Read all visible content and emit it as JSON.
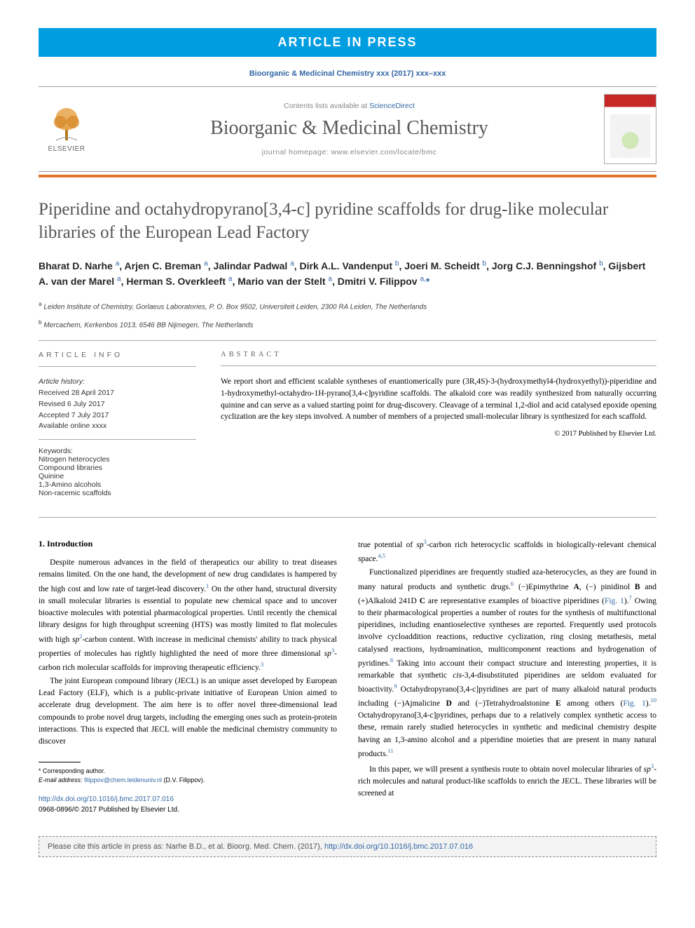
{
  "banner": "ARTICLE IN PRESS",
  "citation_top": "Bioorganic & Medicinal Chemistry xxx (2017) xxx–xxx",
  "header": {
    "publisher_name": "ELSEVIER",
    "contents_prefix": "Contents lists available at ",
    "contents_link": "ScienceDirect",
    "journal_name": "Bioorganic & Medicinal Chemistry",
    "homepage_prefix": "journal homepage: ",
    "homepage_url": "www.elsevier.com/locate/bmc"
  },
  "title": "Piperidine and octahydropyrano[3,4-c] pyridine scaffolds for drug-like molecular libraries of the European Lead Factory",
  "authors_html": "Bharat D. Narhe <sup>a</sup>, Arjen C. Breman <sup>a</sup>, Jalindar Padwal <sup>a</sup>, Dirk A.L. Vandenput <sup>b</sup>, Joeri M. Scheidt <sup>b</sup>, Jorg C.J. Benningshof <sup>b</sup>, Gijsbert A. van der Marel <sup>a</sup>, Herman S. Overkleeft <sup>a</sup>, Mario van der Stelt <sup>a</sup>, Dmitri V. Filippov <sup>a,</sup><span class='star'>*</span>",
  "affiliations": [
    {
      "marker": "a",
      "text": "Leiden Institute of Chemistry, Gorlaeus Laboratories, P. O. Box 9502, Universiteit Leiden, 2300 RA Leiden, The Netherlands"
    },
    {
      "marker": "b",
      "text": "Mercachem, Kerkenbos 1013, 6546 BB Nijmegen, The Netherlands"
    }
  ],
  "article_info": {
    "head": "ARTICLE INFO",
    "history_label": "Article history:",
    "history": [
      "Received 28 April 2017",
      "Revised 6 July 2017",
      "Accepted 7 July 2017",
      "Available online xxxx"
    ],
    "keywords_label": "Keywords:",
    "keywords": [
      "Nitrogen heterocycles",
      "Compound libraries",
      "Quinine",
      "1,3-Amino alcohols",
      "Non-racemic scaffolds"
    ]
  },
  "abstract": {
    "head": "ABSTRACT",
    "text": "We report short and efficient scalable syntheses of enantiomerically pure (3R,4S)-3-(hydroxymethyl4-(hydroxyethyl))-piperidine and 1-hydroxymethyl-octahydro-1H-pyrano[3,4-c]pyridine scaffolds. The alkaloid core was readily synthesized from naturally occurring quinine and can serve as a valued starting point for drug-discovery. Cleavage of a terminal 1,2-diol and acid catalysed epoxide opening cyclization are the key steps involved. A number of members of a projected small-molecular library is synthesized for each scaffold.",
    "copyright": "© 2017 Published by Elsevier Ltd."
  },
  "body": {
    "section_head": "1. Introduction",
    "p1": "Despite numerous advances in the field of therapeutics our ability to treat diseases remains limited. On the one hand, the development of new drug candidates is hampered by the high cost and low rate of target-lead discovery.¹ On the other hand, structural diversity in small molecular libraries is essential to populate new chemical space and to uncover bioactive molecules with potential pharmacological properties. Until recently the chemical library designs for high throughput screening (HTS) was mostly limited to flat molecules with high sp²-carbon content. With increase in medicinal chemists' ability to track physical properties of molecules has rightly highlighted the need of more three dimensional sp³-carbon rich molecular scaffolds for improving therapeutic efficiency.³",
    "p2": "The joint European compound library (JECL) is an unique asset developed by European Lead Factory (ELF), which is a public-private initiative of European Union aimed to accelerate drug development. The aim here is to offer novel three-dimensional lead compounds to probe novel drug targets, including the emerging ones such as protein-protein interactions. This is expected that JECL will enable the medicinal chemistry community to discover",
    "p3": "true potential of sp³-carbon rich heterocyclic scaffolds in biologically-relevant chemical space.⁴,⁵",
    "p4": "Functionalized piperidines are frequently studied aza-heterocycles, as they are found in many natural products and synthetic drugs.⁶ (−)Epimythrine A, (−) pinidinol B and (+)Alkaloid 241D C are representative examples of bioactive piperidines (Fig. 1).⁷ Owing to their pharmacological properties a number of routes for the synthesis of multifunctional piperidines, including enantioselective syntheses are reported. Frequently used protocols involve cycloaddition reactions, reductive cyclization, ring closing metathesis, metal catalysed reactions, hydroamination, multicomponent reactions and hydrogenation of pyridines.⁸ Taking into account their compact structure and interesting properties, it is remarkable that synthetic cis-3,4-disubstituted piperidines are seldom evaluated for bioactivity.⁹ Octahydropyrano[3,4-c]pyridines are part of many alkaloid natural products including (−)Ajmalicine D and (−)Tetrahydroalstonine E among others (Fig. 1).¹⁰ Octahydropyrano[3,4-c]pyridines, perhaps due to a relatively complex synthetic access to these, remain rarely studied heterocycles in synthetic and medicinal chemistry despite having an 1,3-amino alcohol and a piperidine moieties that are present in many natural products.¹¹",
    "p5": "In this paper, we will present a synthesis route to obtain novel molecular libraries of sp³-rich molecules and natural product-like scaffolds to enrich the JECL. These libraries will be screened at"
  },
  "footnotes": {
    "corr": "* Corresponding author.",
    "email_label": "E-mail address: ",
    "email": "filippov@chem.leidenuniv.nl",
    "email_suffix": " (D.V. Filippov)."
  },
  "doi": {
    "url": "http://dx.doi.org/10.1016/j.bmc.2017.07.016",
    "issn_line": "0968-0896/© 2017 Published by Elsevier Ltd."
  },
  "cite_box": {
    "prefix": "Please cite this article in press as: Narhe B.D., et al. Bioorg. Med. Chem. (2017), ",
    "link": "http://dx.doi.org/10.1016/j.bmc.2017.07.016"
  },
  "colors": {
    "banner_bg": "#009de0",
    "orange_rule": "#e2762a",
    "link": "#3467a5",
    "heading_gray": "#545454"
  }
}
